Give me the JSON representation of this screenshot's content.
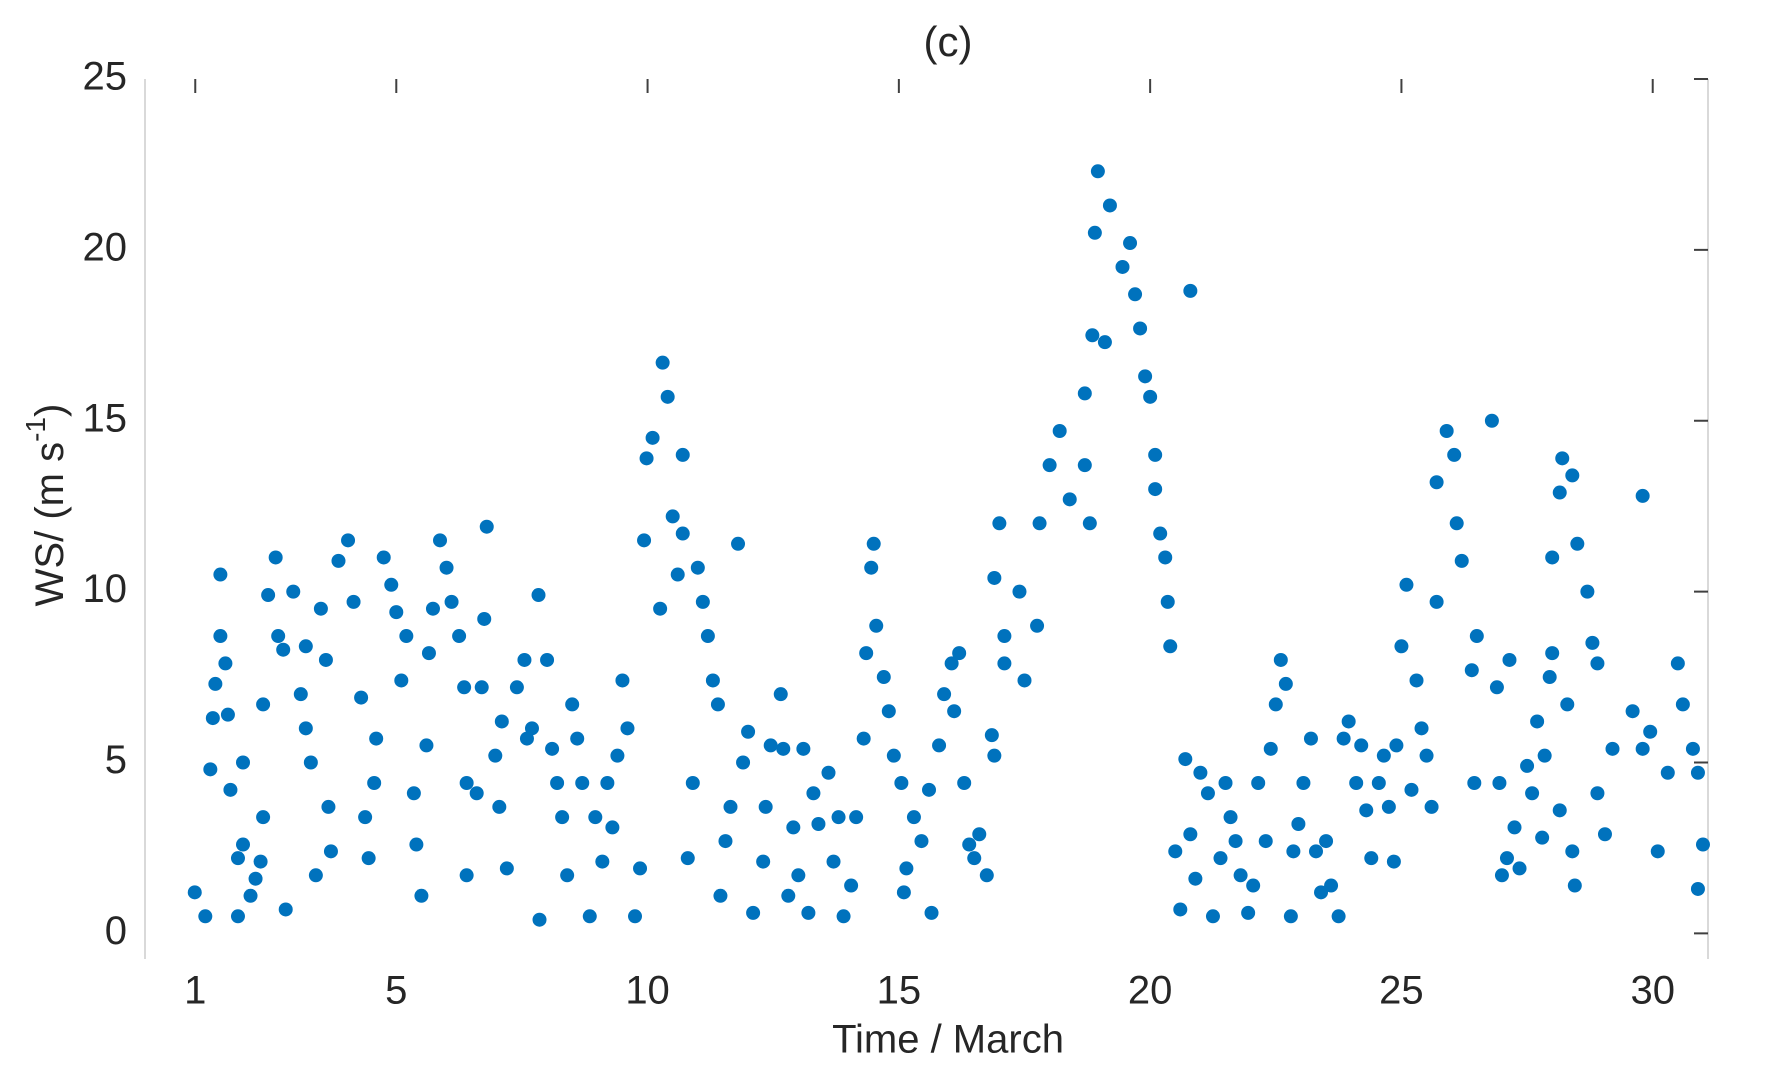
{
  "chart_data": {
    "type": "scatter",
    "title": "(c)",
    "xlabel": "Time / March",
    "ylabel": [
      "WS/ (m s",
      "-1",
      ")"
    ],
    "color": "#0072bd",
    "xlim": [
      0,
      31.1
    ],
    "ylim": [
      -0.75,
      25
    ],
    "xticks": [
      1,
      5,
      10,
      15,
      20,
      25,
      30
    ],
    "yticks": [
      0,
      5,
      10,
      15,
      20,
      25
    ],
    "x": [
      17.0,
      16.9,
      17.4,
      17.75,
      17.5,
      17.8,
      18.0,
      18.2,
      18.4,
      18.7,
      18.8,
      18.7,
      18.85,
      18.96,
      18.9,
      19.1,
      19.2,
      19.45,
      19.6,
      19.7,
      19.8,
      19.9,
      20.0,
      20.1,
      20.1,
      20.2,
      20.3,
      20.35,
      20.4,
      20.8,
      10.1,
      10.3,
      10.4,
      9.98,
      10.5,
      10.7,
      10.7,
      9.93,
      10.25,
      10.6,
      11.0,
      11.1,
      11.2,
      11.3,
      11.4,
      11.8,
      10.9,
      10.8,
      25.9,
      26.05,
      25.7,
      26.1,
      26.2,
      26.8,
      25.7,
      25.1,
      25.0,
      25.3,
      25.4,
      26.4,
      26.5,
      26.45,
      26.9,
      28.2,
      28.4,
      28.15,
      28.5,
      28.7,
      28.8,
      28.9,
      28.0,
      29.8,
      28.0,
      28.15,
      28.9,
      29.05,
      29.2,
      29.6,
      29.8,
      29.95,
      30.1,
      30.5,
      30.6,
      30.8,
      30.9,
      31.0,
      30.9,
      30.3,
      0.99,
      1.2,
      1.3,
      1.35,
      1.4,
      1.5,
      1.5,
      1.6,
      1.65,
      1.7,
      1.85,
      1.95,
      1.95,
      1.85,
      2.1,
      2.2,
      2.3,
      2.35,
      2.35,
      2.45,
      2.6,
      2.65,
      2.75,
      2.8,
      2.95,
      3.1,
      3.2,
      3.2,
      3.3,
      3.4,
      3.5,
      3.6,
      3.65,
      3.7,
      3.85,
      4.04,
      4.15,
      4.3,
      4.38,
      4.45,
      4.56,
      4.6,
      4.75,
      4.9,
      5.0,
      5.1,
      5.2,
      5.35,
      5.4,
      5.5,
      5.6,
      5.65,
      5.73,
      5.87,
      6.0,
      6.1,
      6.25,
      6.35,
      6.4,
      6.4,
      6.6,
      6.7,
      6.75,
      6.8,
      6.97,
      7.05,
      7.1,
      7.2,
      7.4,
      7.55,
      7.6,
      7.7,
      7.85,
      7.83,
      8.0,
      8.1,
      8.2,
      8.3,
      8.4,
      8.5,
      8.6,
      8.7,
      8.85,
      8.96,
      9.1,
      9.2,
      9.3,
      9.4,
      9.5,
      9.6,
      9.75,
      9.85,
      11.55,
      11.45,
      11.65,
      11.9,
      12.0,
      12.1,
      12.3,
      12.35,
      12.45,
      12.65,
      12.7,
      12.8,
      12.9,
      13.0,
      13.1,
      13.2,
      13.3,
      13.4,
      13.6,
      13.7,
      13.8,
      13.9,
      14.05,
      14.15,
      14.3,
      14.35,
      14.45,
      14.5,
      14.55,
      14.7,
      14.8,
      14.9,
      15.05,
      15.1,
      15.15,
      15.3,
      15.45,
      15.6,
      15.65,
      15.8,
      15.9,
      16.05,
      16.1,
      16.2,
      16.3,
      16.4,
      16.5,
      16.6,
      16.75,
      16.85,
      16.9,
      17.1,
      17.1,
      20.5,
      20.6,
      20.7,
      20.8,
      20.9,
      21.0,
      21.15,
      21.25,
      21.4,
      21.5,
      21.6,
      21.7,
      21.8,
      21.95,
      22.05,
      22.15,
      22.3,
      22.4,
      22.5,
      22.6,
      22.7,
      22.8,
      22.85,
      22.95,
      23.05,
      23.2,
      23.3,
      23.4,
      23.5,
      23.6,
      23.75,
      23.85,
      23.95,
      24.1,
      24.2,
      24.3,
      24.4,
      24.55,
      24.65,
      24.75,
      24.85,
      24.9,
      25.2,
      25.5,
      25.6,
      26.95,
      27.1,
      27.15,
      27.25,
      27.0,
      27.35,
      27.5,
      27.6,
      27.7,
      27.8,
      27.85,
      27.95,
      28.3,
      28.45,
      28.4
    ],
    "values": [
      12.0,
      10.4,
      10.0,
      9.0,
      7.4,
      12.0,
      13.7,
      14.7,
      12.7,
      13.7,
      12.0,
      15.8,
      17.5,
      22.3,
      20.5,
      17.3,
      21.3,
      19.5,
      20.2,
      18.7,
      17.7,
      16.3,
      15.7,
      14.0,
      13.0,
      11.7,
      11.0,
      9.7,
      8.4,
      18.8,
      14.5,
      16.7,
      15.7,
      13.9,
      12.2,
      11.7,
      14.0,
      11.5,
      9.5,
      10.5,
      10.7,
      9.7,
      8.7,
      7.4,
      6.7,
      11.4,
      4.4,
      2.2,
      14.7,
      14.0,
      13.2,
      12.0,
      10.9,
      15.0,
      9.7,
      10.2,
      8.4,
      7.4,
      6.0,
      7.7,
      8.7,
      4.4,
      7.2,
      13.9,
      13.4,
      12.9,
      11.4,
      10.0,
      8.5,
      7.9,
      11.0,
      12.8,
      8.2,
      3.6,
      4.1,
      2.9,
      5.4,
      6.5,
      5.4,
      5.9,
      2.4,
      7.9,
      6.7,
      5.4,
      4.7,
      2.6,
      1.3,
      4.7,
      1.2,
      0.5,
      4.8,
      6.3,
      7.3,
      8.7,
      10.5,
      7.9,
      6.4,
      4.2,
      2.2,
      2.6,
      5.0,
      0.5,
      1.1,
      1.6,
      2.1,
      3.4,
      6.7,
      9.9,
      11.0,
      8.7,
      8.3,
      0.7,
      10.0,
      7.0,
      8.4,
      6.0,
      5.0,
      1.7,
      9.5,
      8.0,
      3.7,
      2.4,
      10.9,
      11.5,
      9.7,
      6.9,
      3.4,
      2.2,
      4.4,
      5.7,
      11.0,
      10.2,
      9.4,
      7.4,
      8.7,
      4.1,
      2.6,
      1.1,
      5.5,
      8.2,
      9.5,
      11.5,
      10.7,
      9.7,
      8.7,
      7.2,
      4.4,
      1.7,
      4.1,
      7.2,
      9.2,
      11.9,
      5.2,
      3.7,
      6.2,
      1.9,
      7.2,
      8.0,
      5.7,
      6.0,
      0.4,
      9.9,
      8.0,
      5.4,
      4.4,
      3.4,
      1.7,
      6.7,
      5.7,
      4.4,
      0.5,
      3.4,
      2.1,
      4.4,
      3.1,
      5.2,
      7.4,
      6.0,
      0.5,
      1.9,
      2.7,
      1.1,
      3.7,
      5.0,
      5.9,
      0.6,
      2.1,
      3.7,
      5.5,
      7.0,
      5.4,
      1.1,
      3.1,
      1.7,
      5.4,
      0.6,
      4.1,
      3.2,
      4.7,
      2.1,
      3.4,
      0.5,
      1.4,
      3.4,
      5.7,
      8.2,
      10.7,
      11.4,
      9.0,
      7.5,
      6.5,
      5.2,
      4.4,
      1.2,
      1.9,
      3.4,
      2.7,
      4.2,
      0.6,
      5.5,
      7.0,
      7.9,
      6.5,
      8.2,
      4.4,
      2.6,
      2.2,
      2.9,
      1.7,
      5.8,
      5.2,
      8.7,
      7.9,
      2.4,
      0.7,
      5.1,
      2.9,
      1.6,
      4.7,
      4.1,
      0.5,
      2.2,
      4.4,
      3.4,
      2.7,
      1.7,
      0.6,
      1.4,
      4.4,
      2.7,
      5.4,
      6.7,
      8.0,
      7.3,
      0.5,
      2.4,
      3.2,
      4.4,
      5.7,
      2.4,
      1.2,
      2.7,
      1.4,
      0.5,
      5.7,
      6.2,
      4.4,
      5.5,
      3.6,
      2.2,
      4.4,
      5.2,
      3.7,
      2.1,
      5.5,
      4.2,
      5.2,
      3.7,
      4.4,
      2.2,
      8.0,
      3.1,
      1.7,
      1.9,
      4.9,
      4.1,
      6.2,
      2.8,
      5.2,
      7.5,
      6.7,
      1.4,
      2.4
    ]
  }
}
